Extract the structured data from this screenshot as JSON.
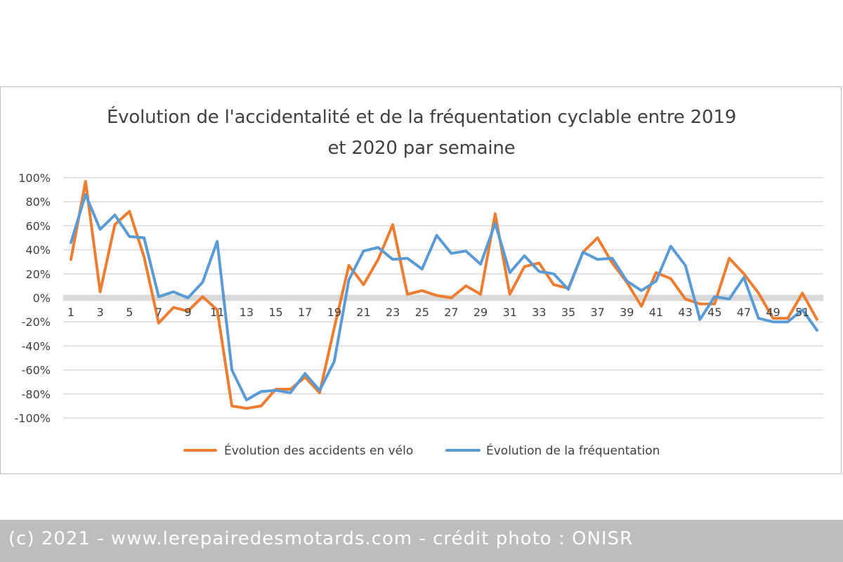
{
  "chart_data": {
    "type": "line",
    "title_line1": "Évolution de l'accidentalité et de la fréquentation cyclable entre 2019",
    "title_line2": "et 2020 par semaine",
    "x": [
      1,
      2,
      3,
      4,
      5,
      6,
      7,
      8,
      9,
      10,
      11,
      12,
      13,
      14,
      15,
      16,
      17,
      18,
      19,
      20,
      21,
      22,
      23,
      24,
      25,
      26,
      27,
      28,
      29,
      30,
      31,
      32,
      33,
      34,
      35,
      36,
      37,
      38,
      39,
      40,
      41,
      42,
      43,
      44,
      45,
      46,
      47,
      48,
      49,
      50,
      51,
      52
    ],
    "x_tick_labels": [
      "1",
      "3",
      "5",
      "7",
      "9",
      "11",
      "13",
      "15",
      "17",
      "19",
      "21",
      "23",
      "25",
      "27",
      "29",
      "31",
      "33",
      "35",
      "37",
      "39",
      "41",
      "43",
      "45",
      "47",
      "49",
      "51"
    ],
    "x_tick_values": [
      1,
      3,
      5,
      7,
      9,
      11,
      13,
      15,
      17,
      19,
      21,
      23,
      25,
      27,
      29,
      31,
      33,
      35,
      37,
      39,
      41,
      43,
      45,
      47,
      49,
      51
    ],
    "y_tick_labels": [
      "100%",
      "80%",
      "60%",
      "40%",
      "20%",
      "0%",
      "-20%",
      "-40%",
      "-60%",
      "-80%",
      "-100%"
    ],
    "y_tick_values": [
      100,
      80,
      60,
      40,
      20,
      0,
      -20,
      -40,
      -60,
      -80,
      -100
    ],
    "ylim": [
      -100,
      100
    ],
    "grid": true,
    "legend_position": "bottom",
    "series": [
      {
        "name": "Évolution des accidents en vélo",
        "color": "#ed7d31",
        "values": [
          32,
          97,
          5,
          61,
          72,
          34,
          -21,
          -8,
          -11,
          1,
          -10,
          -90,
          -92,
          -90,
          -76,
          -76,
          -66,
          -79,
          -25,
          27,
          11,
          32,
          61,
          3,
          6,
          2,
          0,
          10,
          3,
          70,
          3,
          26,
          29,
          11,
          8,
          38,
          50,
          29,
          13,
          -7,
          21,
          16,
          -1,
          -5,
          -5,
          33,
          20,
          4,
          -17,
          -17,
          4,
          -18
        ]
      },
      {
        "name": "Évolution de la fréquentation",
        "color": "#5b9bd5",
        "values": [
          46,
          86,
          57,
          69,
          51,
          50,
          1,
          5,
          0,
          13,
          47,
          -60,
          -85,
          -78,
          -77,
          -79,
          -63,
          -77,
          -53,
          15,
          39,
          42,
          32,
          33,
          24,
          52,
          37,
          39,
          28,
          62,
          21,
          35,
          22,
          20,
          7,
          38,
          32,
          33,
          14,
          6,
          14,
          43,
          27,
          -18,
          1,
          -1,
          17,
          -17,
          -20,
          -20,
          -10,
          -27
        ]
      }
    ]
  },
  "footer": {
    "credit": "(c) 2021 - www.lerepairedesmotards.com  - crédit photo : ONISR"
  }
}
